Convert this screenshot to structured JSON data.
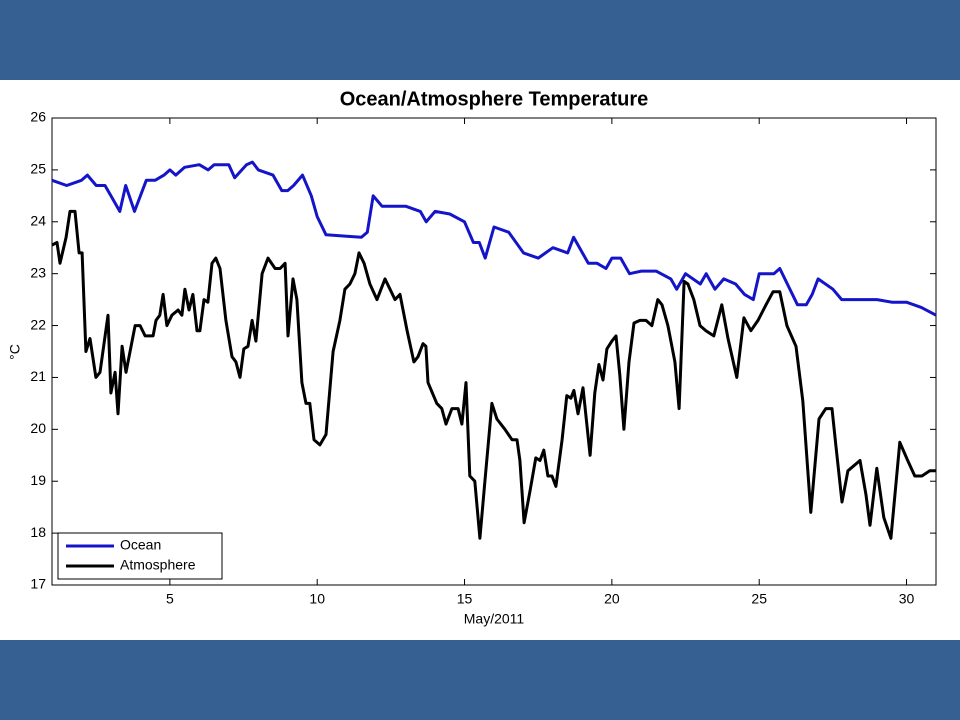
{
  "chart_data": {
    "type": "line",
    "title": "Ocean/Atmosphere Temperature",
    "x_label": "May/2011",
    "y_label": "°C",
    "xlim": [
      1,
      31
    ],
    "ylim": [
      17,
      26
    ],
    "xticks": [
      5,
      10,
      15,
      20,
      25,
      30
    ],
    "yticks": [
      17,
      18,
      19,
      20,
      21,
      22,
      23,
      24,
      25,
      26
    ],
    "legend": "lower left",
    "series": [
      {
        "name": "Ocean",
        "color": "#1414c8",
        "x": [
          1,
          1.5,
          2,
          2.2,
          2.5,
          2.8,
          3,
          3.3,
          3.5,
          3.8,
          4.2,
          4.5,
          4.8,
          5,
          5.2,
          5.5,
          6,
          6.3,
          6.5,
          7,
          7.2,
          7.6,
          7.8,
          8,
          8.5,
          8.8,
          9,
          9.2,
          9.5,
          9.8,
          10,
          10.3,
          11,
          11.5,
          11.7,
          11.9,
          12.2,
          12.5,
          13,
          13.5,
          13.7,
          14,
          14.5,
          15,
          15.3,
          15.5,
          15.7,
          16,
          16.5,
          17,
          17.5,
          18,
          18.5,
          18.7,
          19.2,
          19.5,
          19.8,
          20,
          20.3,
          20.6,
          21,
          21.5,
          22,
          22.2,
          22.5,
          23,
          23.2,
          23.5,
          23.8,
          24.2,
          24.5,
          24.8,
          25,
          25.5,
          25.7,
          26.3,
          26.6,
          26.8,
          27,
          27.5,
          27.8,
          28,
          29,
          29.5,
          30,
          30.5,
          31
        ],
        "values": [
          24.8,
          24.7,
          24.8,
          24.9,
          24.7,
          24.7,
          24.5,
          24.2,
          24.7,
          24.2,
          24.8,
          24.8,
          24.9,
          25.0,
          24.9,
          25.05,
          25.1,
          25.0,
          25.1,
          25.1,
          24.85,
          25.1,
          25.15,
          25.0,
          24.9,
          24.6,
          24.6,
          24.7,
          24.9,
          24.5,
          24.1,
          23.75,
          23.72,
          23.7,
          23.8,
          24.5,
          24.3,
          24.3,
          24.3,
          24.2,
          24.0,
          24.2,
          24.15,
          24.0,
          23.6,
          23.6,
          23.3,
          23.9,
          23.8,
          23.4,
          23.3,
          23.5,
          23.4,
          23.7,
          23.2,
          23.2,
          23.1,
          23.3,
          23.3,
          23.0,
          23.05,
          23.05,
          22.9,
          22.7,
          23.0,
          22.8,
          23.0,
          22.7,
          22.9,
          22.8,
          22.6,
          22.5,
          23.0,
          23.0,
          23.1,
          22.4,
          22.4,
          22.6,
          22.9,
          22.7,
          22.5,
          22.5,
          22.5,
          22.45,
          22.45,
          22.35,
          22.2
        ]
      },
      {
        "name": "Atmosphere",
        "color": "#000000",
        "x": [
          1.0,
          1.17,
          1.27,
          1.48,
          1.61,
          1.78,
          1.92,
          2.02,
          2.15,
          2.29,
          2.49,
          2.63,
          2.9,
          3.0,
          3.14,
          3.24,
          3.38,
          3.51,
          3.82,
          3.99,
          4.16,
          4.43,
          4.53,
          4.66,
          4.77,
          4.9,
          5.07,
          5.28,
          5.41,
          5.51,
          5.65,
          5.78,
          5.92,
          6.02,
          6.16,
          6.29,
          6.43,
          6.56,
          6.7,
          6.9,
          7.11,
          7.24,
          7.38,
          7.51,
          7.65,
          7.79,
          7.92,
          8.13,
          8.33,
          8.57,
          8.74,
          8.91,
          9.01,
          9.18,
          9.31,
          9.48,
          9.62,
          9.75,
          9.89,
          10.09,
          10.3,
          10.54,
          10.77,
          10.94,
          11.11,
          11.28,
          11.42,
          11.59,
          11.79,
          12.03,
          12.3,
          12.47,
          12.64,
          12.81,
          13.05,
          13.28,
          13.42,
          13.59,
          13.69,
          13.76,
          14.06,
          14.23,
          14.37,
          14.57,
          14.78,
          14.91,
          15.05,
          15.18,
          15.35,
          15.52,
          15.69,
          15.93,
          16.1,
          16.37,
          16.61,
          16.78,
          16.88,
          17.02,
          17.22,
          17.42,
          17.56,
          17.69,
          17.83,
          17.97,
          18.1,
          18.31,
          18.47,
          18.61,
          18.71,
          18.85,
          19.02,
          19.26,
          19.42,
          19.56,
          19.7,
          19.83,
          20.0,
          20.14,
          20.27,
          20.41,
          20.58,
          20.75,
          20.95,
          21.16,
          21.36,
          21.56,
          21.7,
          21.9,
          22.14,
          22.28,
          22.45,
          22.58,
          22.78,
          22.99,
          23.19,
          23.46,
          23.73,
          23.94,
          24.24,
          24.48,
          24.72,
          24.96,
          25.23,
          25.47,
          25.7,
          25.94,
          26.25,
          26.48,
          26.75,
          27.03,
          27.26,
          27.47,
          27.6,
          27.81,
          28.01,
          28.42,
          28.62,
          28.76,
          28.99,
          29.23,
          29.47,
          29.77,
          30.04,
          30.28,
          30.52,
          30.79,
          31.0
        ],
        "values": [
          23.55,
          23.6,
          23.2,
          23.7,
          24.2,
          24.2,
          23.4,
          23.4,
          21.5,
          21.75,
          21.0,
          21.1,
          22.2,
          20.7,
          21.1,
          20.3,
          21.6,
          21.1,
          22.0,
          22.0,
          21.8,
          21.8,
          22.1,
          22.2,
          22.6,
          22.0,
          22.2,
          22.3,
          22.2,
          22.7,
          22.3,
          22.6,
          21.9,
          21.9,
          22.5,
          22.45,
          23.2,
          23.3,
          23.1,
          22.1,
          21.4,
          21.3,
          21.0,
          21.55,
          21.6,
          22.1,
          21.7,
          23.0,
          23.3,
          23.1,
          23.1,
          23.2,
          21.8,
          22.9,
          22.5,
          20.9,
          20.5,
          20.5,
          19.8,
          19.7,
          19.9,
          21.5,
          22.1,
          22.7,
          22.8,
          23.0,
          23.4,
          23.2,
          22.8,
          22.5,
          22.9,
          22.7,
          22.5,
          22.6,
          21.9,
          21.3,
          21.4,
          21.65,
          21.6,
          20.9,
          20.5,
          20.4,
          20.1,
          20.4,
          20.4,
          20.1,
          20.9,
          19.1,
          19.0,
          17.9,
          19.0,
          20.5,
          20.2,
          20.0,
          19.8,
          19.8,
          19.4,
          18.2,
          18.8,
          19.45,
          19.4,
          19.6,
          19.1,
          19.1,
          18.9,
          19.8,
          20.65,
          20.6,
          20.75,
          20.3,
          20.8,
          19.5,
          20.7,
          21.25,
          20.95,
          21.55,
          21.7,
          21.8,
          21.05,
          20.0,
          21.3,
          22.05,
          22.1,
          22.1,
          22.0,
          22.5,
          22.4,
          22.0,
          21.3,
          20.4,
          22.85,
          22.8,
          22.5,
          22.0,
          21.9,
          21.8,
          22.4,
          21.75,
          21.0,
          22.15,
          21.9,
          22.1,
          22.4,
          22.65,
          22.65,
          22.0,
          21.6,
          20.55,
          18.4,
          20.2,
          20.4,
          20.4,
          19.7,
          18.6,
          19.2,
          19.4,
          18.75,
          18.15,
          19.25,
          18.3,
          17.9,
          19.75,
          19.4,
          19.1,
          19.1,
          19.2,
          19.2
        ]
      }
    ]
  }
}
